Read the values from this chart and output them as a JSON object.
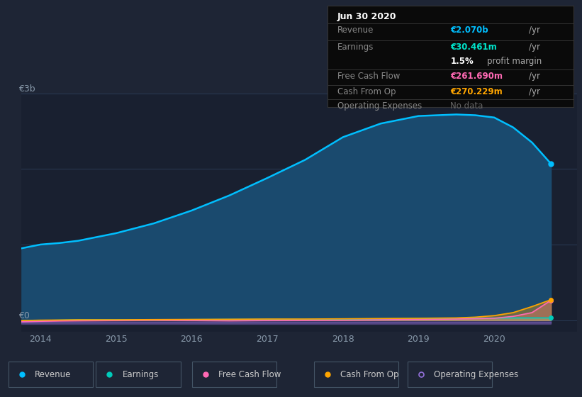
{
  "background_color": "#1e2535",
  "plot_bg_color": "#192030",
  "grid_color": "#2a3a55",
  "title_box": {
    "date": "Jun 30 2020",
    "revenue_val": "€2.070b",
    "earnings_val": "€30.461m",
    "profit_margin": "1.5%",
    "fcf_val": "€261.690m",
    "cfo_val": "€270.229m",
    "revenue_color": "#00bfff",
    "earnings_color": "#00e5cc",
    "fcf_color": "#ff69b4",
    "cfo_color": "#ffa500"
  },
  "years": [
    2013.75,
    2014.0,
    2014.25,
    2014.5,
    2015.0,
    2015.5,
    2016.0,
    2016.5,
    2017.0,
    2017.5,
    2018.0,
    2018.5,
    2019.0,
    2019.5,
    2019.75,
    2020.0,
    2020.25,
    2020.5,
    2020.75
  ],
  "revenue": [
    0.95,
    1.0,
    1.02,
    1.05,
    1.15,
    1.28,
    1.45,
    1.65,
    1.88,
    2.12,
    2.42,
    2.6,
    2.7,
    2.72,
    2.71,
    2.68,
    2.55,
    2.35,
    2.07
  ],
  "earnings": [
    -0.01,
    -0.005,
    0.0,
    0.005,
    0.005,
    0.005,
    0.008,
    0.01,
    0.01,
    0.01,
    0.01,
    0.012,
    0.015,
    0.02,
    0.025,
    0.028,
    0.03,
    0.03,
    0.03
  ],
  "free_cash_flow": [
    -0.02,
    -0.015,
    -0.01,
    -0.008,
    -0.005,
    0.0,
    -0.005,
    -0.008,
    -0.005,
    -0.002,
    0.0,
    0.005,
    0.01,
    0.015,
    0.02,
    0.025,
    0.05,
    0.1,
    0.262
  ],
  "cash_from_op": [
    -0.005,
    0.0,
    0.002,
    0.005,
    0.005,
    0.008,
    0.01,
    0.012,
    0.015,
    0.015,
    0.018,
    0.022,
    0.025,
    0.03,
    0.04,
    0.06,
    0.1,
    0.18,
    0.27
  ],
  "operating_expenses": [
    0.0,
    0.0,
    0.0,
    0.0,
    0.0,
    0.0,
    0.0,
    0.0,
    0.0,
    0.0,
    0.0,
    0.0,
    0.0,
    0.0,
    0.0,
    0.0,
    0.0,
    0.0,
    0.0
  ],
  "colors": {
    "revenue": "#00bfff",
    "revenue_fill": "#1a4a6e",
    "earnings": "#00ccbb",
    "earnings_fill": "#00ccbb",
    "free_cash_flow": "#ff69b4",
    "cash_from_op": "#ffa500",
    "operating_expenses": "#9370db"
  },
  "ylabel_3b": "€3b",
  "ylabel_0": "€0",
  "ylim": [
    -0.15,
    3.0
  ],
  "y_zero": 0.0,
  "xlim": [
    2013.75,
    2021.1
  ],
  "xticks": [
    2014,
    2015,
    2016,
    2017,
    2018,
    2019,
    2020
  ],
  "legend_items": [
    {
      "label": "Revenue",
      "color": "#00bfff",
      "filled": true
    },
    {
      "label": "Earnings",
      "color": "#00ccbb",
      "filled": true
    },
    {
      "label": "Free Cash Flow",
      "color": "#ff69b4",
      "filled": true
    },
    {
      "label": "Cash From Op",
      "color": "#ffa500",
      "filled": true
    },
    {
      "label": "Operating Expenses",
      "color": "#9370db",
      "filled": false
    }
  ]
}
